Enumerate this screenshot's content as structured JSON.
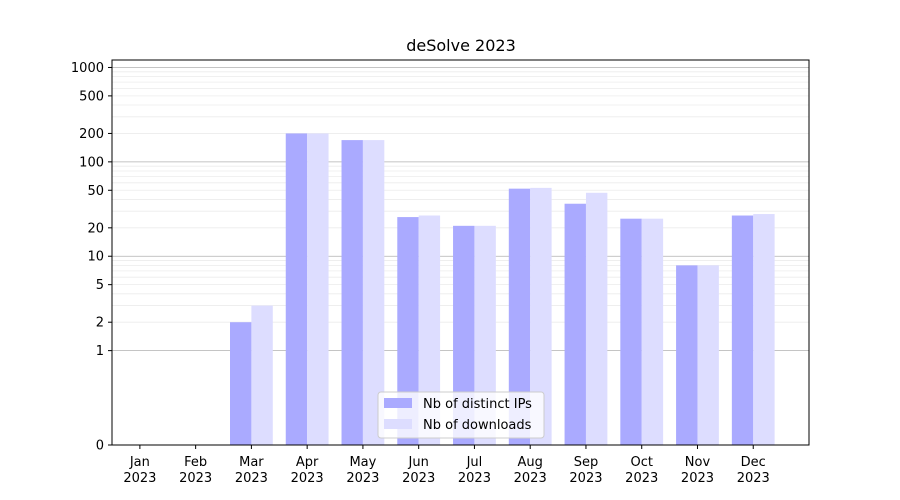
{
  "chart_data": {
    "type": "bar",
    "title": "deSolve 2023",
    "xlabel": "",
    "ylabel": "",
    "yscale": "symlog",
    "ylim": [
      0,
      1200
    ],
    "yticks": [
      0,
      1,
      2,
      5,
      10,
      20,
      50,
      100,
      200,
      500,
      1000
    ],
    "grid": "horizontal",
    "categories": [
      {
        "month": "Jan",
        "year": "2023"
      },
      {
        "month": "Feb",
        "year": "2023"
      },
      {
        "month": "Mar",
        "year": "2023"
      },
      {
        "month": "Apr",
        "year": "2023"
      },
      {
        "month": "May",
        "year": "2023"
      },
      {
        "month": "Jun",
        "year": "2023"
      },
      {
        "month": "Jul",
        "year": "2023"
      },
      {
        "month": "Aug",
        "year": "2023"
      },
      {
        "month": "Sep",
        "year": "2023"
      },
      {
        "month": "Oct",
        "year": "2023"
      },
      {
        "month": "Nov",
        "year": "2023"
      },
      {
        "month": "Dec",
        "year": "2023"
      }
    ],
    "series": [
      {
        "name": "Nb of distinct IPs",
        "color": "#aaaaff",
        "values": [
          0,
          0,
          2,
          200,
          170,
          26,
          21,
          52,
          36,
          25,
          8,
          27
        ]
      },
      {
        "name": "Nb of downloads",
        "color": "#ddddff",
        "values": [
          0,
          0,
          3,
          200,
          170,
          27,
          21,
          53,
          47,
          25,
          8,
          28
        ]
      }
    ],
    "legend": "bottom-center"
  }
}
